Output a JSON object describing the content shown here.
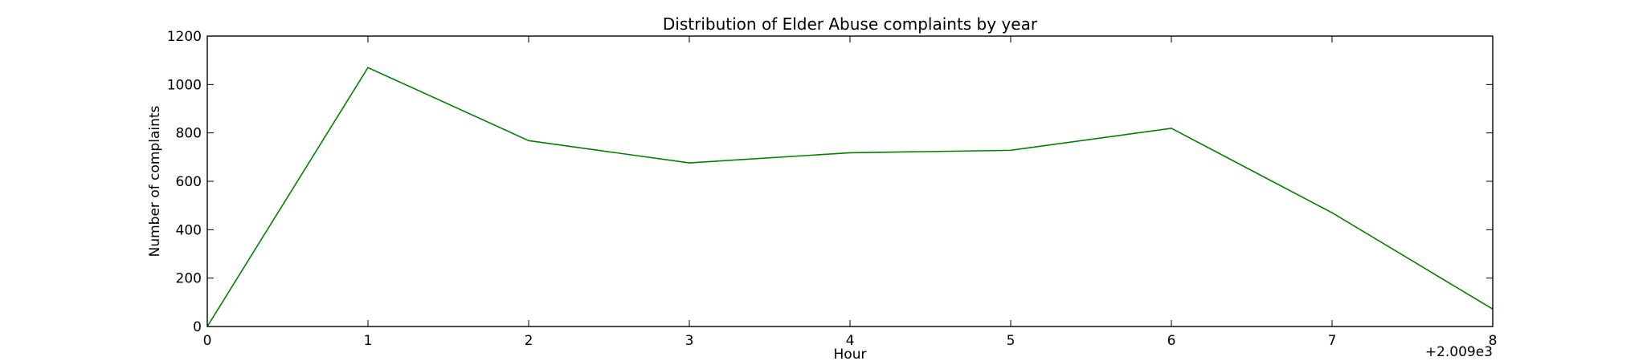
{
  "chart_data": {
    "type": "line",
    "title": "Distribution of  Elder Abuse complaints by year",
    "xlabel": "Hour",
    "ylabel": "Number of complaints",
    "x_offset_label": "+2.009e3",
    "x_ticks": [
      "0",
      "1",
      "2",
      "3",
      "4",
      "5",
      "6",
      "7",
      "8"
    ],
    "y_ticks": [
      "0",
      "200",
      "400",
      "600",
      "800",
      "1000",
      "1200"
    ],
    "xlim": [
      0,
      8
    ],
    "ylim": [
      0,
      1200
    ],
    "grid": false,
    "series": [
      {
        "x": [
          0,
          1,
          2,
          3,
          4,
          5,
          6,
          7,
          8
        ],
        "values": [
          0,
          1070,
          768,
          676,
          718,
          728,
          819,
          470,
          72
        ],
        "color": "#008000"
      }
    ]
  }
}
